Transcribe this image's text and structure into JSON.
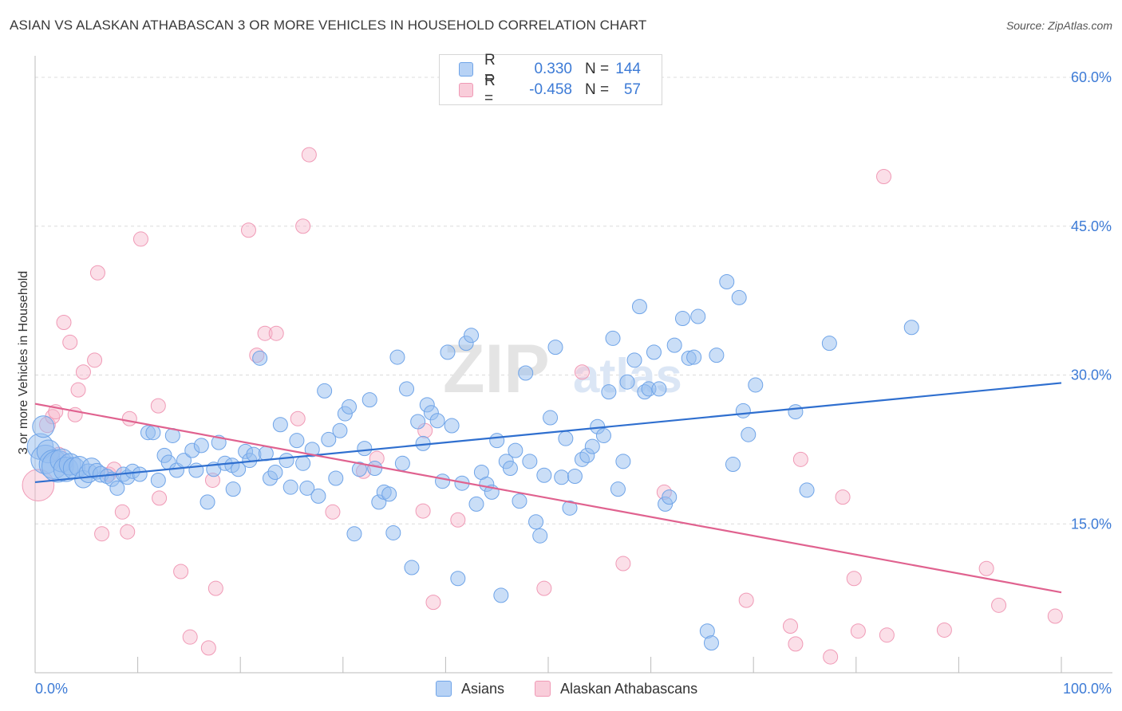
{
  "chart_data": {
    "type": "scatter",
    "title": "ASIAN VS ALASKAN ATHABASCAN 3 OR MORE VEHICLES IN HOUSEHOLD CORRELATION CHART",
    "source": "Source: ZipAtlas.com",
    "watermark": "ZIPatlas",
    "xlabel": "",
    "ylabel": "3 or more Vehicles in Household",
    "xlim": [
      0,
      100
    ],
    "ylim": [
      0,
      60
    ],
    "x_tick_labels": [
      "0.0%",
      "100.0%"
    ],
    "y_ticks": [
      15,
      30,
      45,
      60
    ],
    "y_tick_labels": [
      "15.0%",
      "30.0%",
      "45.0%",
      "60.0%"
    ],
    "colors": {
      "asians": "#6fa4e8",
      "athabascans": "#f09ab6",
      "asians_line": "#2f6fcf",
      "athabascans_line": "#e0628f",
      "tick_label": "#3d7bd6"
    },
    "legend": [
      {
        "name": "Asians",
        "r_label": "R =",
        "r": "0.330",
        "n_label": "N =",
        "n": "144"
      },
      {
        "name": "Alaskan Athabascans",
        "r_label": "R =",
        "r": "-0.458",
        "n_label": "N =",
        "n": "57"
      }
    ],
    "series": [
      {
        "name": "Asians",
        "trend": {
          "x": [
            0,
            100
          ],
          "y": [
            19.2,
            29.2
          ]
        },
        "points": [
          [
            0.5,
            22.8,
            1.8
          ],
          [
            0.8,
            24.8,
            1.5
          ],
          [
            1.0,
            21.5,
            2.0
          ],
          [
            1.3,
            22.3,
            1.6
          ],
          [
            1.8,
            21.0,
            2.0
          ],
          [
            2.2,
            20.8,
            2.2
          ],
          [
            2.6,
            21.4,
            1.6
          ],
          [
            3.0,
            20.5,
            1.7
          ],
          [
            3.4,
            21.0,
            1.5
          ],
          [
            3.8,
            20.6,
            1.5
          ],
          [
            4.3,
            20.8,
            1.4
          ],
          [
            4.7,
            19.5,
            1.2
          ],
          [
            5.2,
            20.1,
            1.3
          ],
          [
            5.5,
            20.7,
            1.3
          ],
          [
            6.0,
            20.3,
            1.1
          ],
          [
            6.4,
            20.0,
            1.1
          ],
          [
            7.0,
            19.8,
            1.0
          ],
          [
            7.5,
            19.5,
            1.0
          ],
          [
            8.0,
            18.6,
            1.0
          ],
          [
            8.6,
            20.0,
            1.0
          ],
          [
            9.0,
            19.7,
            1.0
          ],
          [
            9.5,
            20.3,
            1.0
          ],
          [
            10.2,
            20.0,
            1.0
          ],
          [
            11.0,
            24.2,
            1.0
          ],
          [
            11.5,
            24.2,
            1.0
          ],
          [
            12.0,
            19.4,
            1.0
          ],
          [
            12.6,
            21.9,
            1.0
          ],
          [
            13.0,
            21.2,
            1.0
          ],
          [
            13.4,
            23.9,
            1.0
          ],
          [
            13.8,
            20.4,
            1.0
          ],
          [
            14.5,
            21.4,
            1.0
          ],
          [
            15.3,
            22.4,
            1.0
          ],
          [
            15.7,
            20.4,
            1.0
          ],
          [
            16.2,
            22.9,
            1.0
          ],
          [
            16.8,
            17.2,
            1.0
          ],
          [
            17.4,
            20.5,
            1.0
          ],
          [
            17.9,
            23.2,
            1.0
          ],
          [
            18.5,
            21.1,
            1.0
          ],
          [
            19.2,
            20.9,
            1.0
          ],
          [
            19.3,
            18.5,
            1.0
          ],
          [
            19.8,
            20.5,
            1.0
          ],
          [
            20.5,
            22.3,
            1.0
          ],
          [
            20.9,
            21.4,
            1.0
          ],
          [
            21.3,
            22.0,
            1.0
          ],
          [
            21.9,
            31.7,
            1.0
          ],
          [
            22.5,
            22.1,
            1.0
          ],
          [
            22.9,
            19.6,
            1.0
          ],
          [
            23.4,
            20.2,
            1.0
          ],
          [
            23.9,
            25.0,
            1.0
          ],
          [
            24.5,
            21.4,
            1.0
          ],
          [
            24.9,
            18.7,
            1.0
          ],
          [
            25.5,
            23.4,
            1.0
          ],
          [
            26.1,
            21.1,
            1.0
          ],
          [
            26.5,
            18.6,
            1.0
          ],
          [
            27.0,
            22.5,
            1.0
          ],
          [
            27.6,
            17.8,
            1.0
          ],
          [
            28.2,
            28.4,
            1.0
          ],
          [
            28.6,
            23.5,
            1.0
          ],
          [
            29.3,
            19.6,
            1.0
          ],
          [
            29.7,
            24.4,
            1.0
          ],
          [
            30.2,
            26.1,
            1.0
          ],
          [
            30.6,
            26.8,
            1.0
          ],
          [
            31.1,
            14.0,
            1.0
          ],
          [
            31.6,
            20.5,
            1.0
          ],
          [
            32.1,
            22.6,
            1.0
          ],
          [
            32.6,
            27.5,
            1.0
          ],
          [
            33.1,
            20.6,
            1.0
          ],
          [
            33.5,
            17.2,
            1.0
          ],
          [
            34.0,
            18.2,
            1.0
          ],
          [
            34.5,
            18.0,
            1.0
          ],
          [
            34.9,
            14.1,
            1.0
          ],
          [
            35.3,
            31.8,
            1.0
          ],
          [
            35.8,
            21.1,
            1.0
          ],
          [
            36.2,
            28.6,
            1.0
          ],
          [
            36.7,
            10.6,
            1.0
          ],
          [
            37.3,
            25.3,
            1.0
          ],
          [
            37.8,
            23.1,
            1.0
          ],
          [
            38.2,
            27.0,
            1.0
          ],
          [
            38.6,
            26.2,
            1.0
          ],
          [
            39.2,
            25.4,
            1.0
          ],
          [
            39.7,
            19.3,
            1.0
          ],
          [
            40.2,
            32.3,
            1.0
          ],
          [
            40.6,
            24.9,
            1.0
          ],
          [
            41.2,
            9.5,
            1.0
          ],
          [
            41.6,
            19.1,
            1.0
          ],
          [
            42.0,
            33.2,
            1.0
          ],
          [
            42.5,
            34.0,
            1.0
          ],
          [
            43.0,
            17.0,
            1.0
          ],
          [
            43.5,
            20.2,
            1.0
          ],
          [
            44.0,
            19.0,
            1.0
          ],
          [
            44.5,
            18.2,
            1.0
          ],
          [
            45.0,
            23.4,
            1.0
          ],
          [
            45.4,
            7.8,
            1.0
          ],
          [
            45.9,
            21.3,
            1.0
          ],
          [
            46.3,
            20.6,
            1.0
          ],
          [
            46.8,
            22.4,
            1.0
          ],
          [
            47.2,
            17.3,
            1.0
          ],
          [
            47.8,
            30.2,
            1.0
          ],
          [
            48.2,
            21.3,
            1.0
          ],
          [
            48.8,
            15.2,
            1.0
          ],
          [
            49.2,
            13.8,
            1.0
          ],
          [
            49.6,
            19.9,
            1.0
          ],
          [
            50.2,
            25.7,
            1.0
          ],
          [
            50.7,
            32.8,
            1.0
          ],
          [
            51.3,
            19.7,
            1.0
          ],
          [
            51.7,
            23.6,
            1.0
          ],
          [
            52.1,
            16.6,
            1.0
          ],
          [
            52.6,
            19.8,
            1.0
          ],
          [
            53.3,
            21.5,
            1.0
          ],
          [
            53.8,
            21.9,
            1.0
          ],
          [
            54.3,
            22.8,
            1.0
          ],
          [
            54.8,
            24.8,
            1.0
          ],
          [
            55.4,
            23.9,
            1.0
          ],
          [
            55.9,
            28.3,
            1.0
          ],
          [
            56.3,
            33.7,
            1.0
          ],
          [
            56.8,
            18.5,
            1.0
          ],
          [
            57.3,
            21.3,
            1.0
          ],
          [
            57.7,
            29.3,
            1.0
          ],
          [
            58.4,
            31.5,
            1.0
          ],
          [
            58.9,
            36.9,
            1.0
          ],
          [
            59.4,
            28.3,
            1.0
          ],
          [
            59.8,
            28.6,
            1.0
          ],
          [
            60.3,
            32.3,
            1.0
          ],
          [
            60.8,
            28.6,
            1.0
          ],
          [
            61.4,
            17.0,
            1.0
          ],
          [
            61.8,
            17.7,
            1.0
          ],
          [
            62.3,
            33.0,
            1.0
          ],
          [
            63.1,
            35.7,
            1.0
          ],
          [
            63.7,
            31.7,
            1.0
          ],
          [
            64.2,
            31.8,
            1.0
          ],
          [
            64.6,
            35.9,
            1.0
          ],
          [
            65.5,
            4.2,
            1.0
          ],
          [
            65.9,
            3.0,
            1.0
          ],
          [
            66.4,
            32.0,
            1.0
          ],
          [
            67.4,
            39.4,
            1.0
          ],
          [
            68.0,
            21.0,
            1.0
          ],
          [
            68.6,
            37.8,
            1.0
          ],
          [
            69.0,
            26.4,
            1.0
          ],
          [
            69.5,
            24.0,
            1.0
          ],
          [
            70.2,
            29.0,
            1.0
          ],
          [
            74.1,
            26.3,
            1.0
          ],
          [
            75.2,
            18.4,
            1.0
          ],
          [
            77.4,
            33.2,
            1.0
          ],
          [
            85.4,
            34.8,
            1.0
          ]
        ]
      },
      {
        "name": "Alaskan Athabascans",
        "trend": {
          "x": [
            0,
            100
          ],
          "y": [
            27.1,
            8.1
          ]
        },
        "points": [
          [
            0.3,
            18.9,
            2.2
          ],
          [
            1.2,
            25.0,
            1.1
          ],
          [
            1.7,
            25.8,
            1.0
          ],
          [
            2.0,
            26.3,
            1.0
          ],
          [
            2.3,
            22.0,
            1.0
          ],
          [
            2.8,
            35.3,
            1.0
          ],
          [
            3.4,
            33.3,
            1.0
          ],
          [
            3.9,
            26.0,
            1.0
          ],
          [
            4.2,
            28.5,
            1.0
          ],
          [
            4.7,
            30.3,
            1.0
          ],
          [
            5.8,
            31.5,
            1.0
          ],
          [
            6.1,
            40.3,
            1.0
          ],
          [
            6.5,
            14.0,
            1.0
          ],
          [
            7.2,
            20.0,
            1.0
          ],
          [
            7.7,
            20.5,
            1.0
          ],
          [
            8.5,
            16.2,
            1.0
          ],
          [
            9.0,
            14.2,
            1.0
          ],
          [
            9.2,
            25.6,
            1.0
          ],
          [
            10.3,
            43.7,
            1.0
          ],
          [
            12.0,
            26.9,
            1.0
          ],
          [
            12.1,
            17.6,
            1.0
          ],
          [
            14.2,
            10.2,
            1.0
          ],
          [
            15.1,
            3.6,
            1.0
          ],
          [
            16.9,
            2.5,
            1.0
          ],
          [
            17.3,
            19.4,
            1.0
          ],
          [
            17.6,
            8.5,
            1.0
          ],
          [
            20.8,
            44.6,
            1.0
          ],
          [
            21.6,
            32.0,
            1.0
          ],
          [
            22.4,
            34.2,
            1.0
          ],
          [
            23.5,
            34.2,
            1.0
          ],
          [
            25.6,
            25.6,
            1.0
          ],
          [
            26.1,
            45.0,
            1.0
          ],
          [
            26.7,
            52.2,
            1.0
          ],
          [
            29.0,
            16.2,
            1.0
          ],
          [
            32.0,
            20.3,
            1.0
          ],
          [
            33.3,
            21.6,
            1.0
          ],
          [
            37.8,
            16.3,
            1.0
          ],
          [
            38.0,
            24.4,
            1.0
          ],
          [
            38.8,
            7.1,
            1.0
          ],
          [
            41.2,
            15.4,
            1.0
          ],
          [
            49.6,
            8.5,
            1.0
          ],
          [
            53.3,
            30.3,
            1.0
          ],
          [
            57.3,
            11.0,
            1.0
          ],
          [
            61.3,
            18.2,
            1.0
          ],
          [
            69.3,
            7.3,
            1.0
          ],
          [
            73.6,
            4.7,
            1.0
          ],
          [
            74.1,
            2.9,
            1.0
          ],
          [
            74.6,
            21.5,
            1.0
          ],
          [
            77.5,
            1.6,
            1.0
          ],
          [
            78.7,
            17.7,
            1.0
          ],
          [
            79.8,
            9.5,
            1.0
          ],
          [
            80.2,
            4.2,
            1.0
          ],
          [
            83.0,
            3.8,
            1.0
          ],
          [
            82.7,
            50.0,
            1.0
          ],
          [
            88.6,
            4.3,
            1.0
          ],
          [
            92.7,
            10.5,
            1.0
          ],
          [
            93.9,
            6.8,
            1.0
          ],
          [
            99.4,
            5.7,
            1.0
          ]
        ]
      }
    ]
  }
}
